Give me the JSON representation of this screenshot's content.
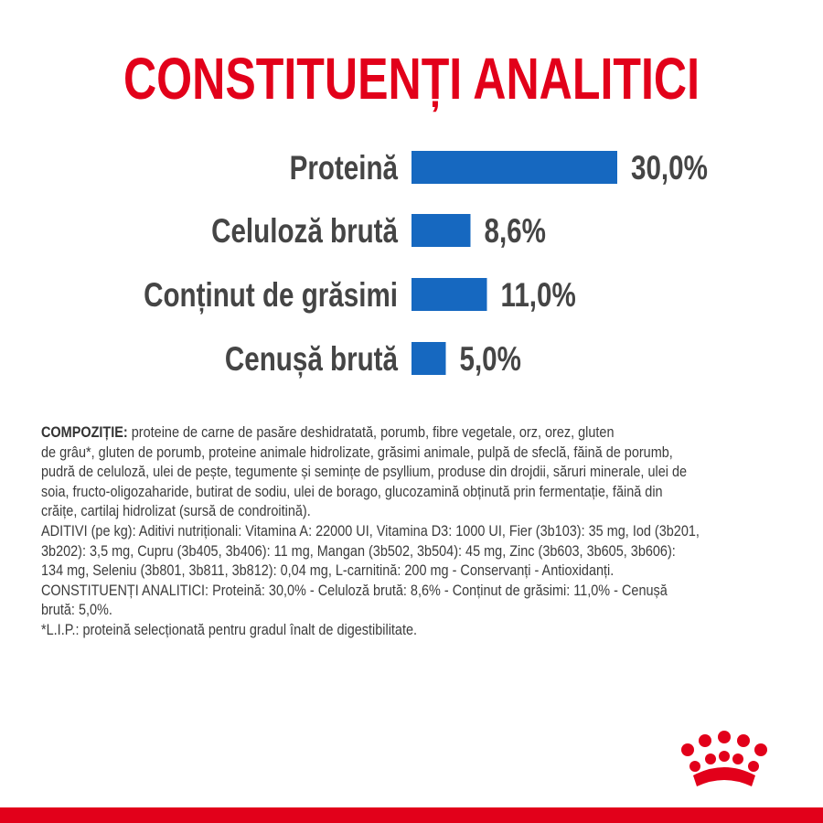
{
  "chart_data": {
    "type": "bar",
    "orientation": "horizontal",
    "title": "CONSTITUENȚI ANALITICI",
    "categories": [
      "Proteină",
      "Celuloză brută",
      "Conținut de grăsimi",
      "Cenușă brută"
    ],
    "values": [
      30.0,
      8.6,
      11.0,
      5.0
    ],
    "value_labels": [
      "30,0%",
      "8,6%",
      "11,0%",
      "5,0%"
    ],
    "color": "#1668c0"
  },
  "composition": {
    "label": "COMPOZIȚIE:",
    "lines": [
      "proteine de carne de pasăre deshidratată, porumb, fibre vegetale, orz, orez, gluten",
      "de grâu*, gluten de porumb, proteine animale hidrolizate, grăsimi animale, pulpă de sfeclă, făină de porumb,",
      "pudră de celuloză, ulei de pește, tegumente și semințe de psyllium, produse din drojdii, săruri minerale, ulei de",
      "soia, fructo-oligozaharide, butirat de sodiu, ulei de borago, glucozamină obținută prin fermentație, făină din",
      "crăițe, cartilaj hidrolizat (sursă de condroitină)."
    ]
  },
  "details": [
    "ADITIVI (pe kg): Aditivi nutriționali: Vitamina A: 22000 UI, Vitamina D3: 1000 UI, Fier (3b103): 35 mg, Iod (3b201,",
    "3b202): 3,5 mg, Cupru (3b405, 3b406): 11 mg, Mangan (3b502, 3b504): 45 mg, Zinc (3b603, 3b605, 3b606):",
    "134 mg, Seleniu (3b801, 3b811, 3b812): 0,04 mg, L-carnitină: 200 mg - Conservanți - Antioxidanți.",
    "CONSTITUENȚI ANALITICI: Proteină: 30,0% - Celuloză brută: 8,6% - Conținut de grăsimi: 11,0% - Cenușă",
    "brută: 5,0%.",
    "*L.I.P.: proteină selecționată pentru gradul înalt de digestibilitate."
  ]
}
